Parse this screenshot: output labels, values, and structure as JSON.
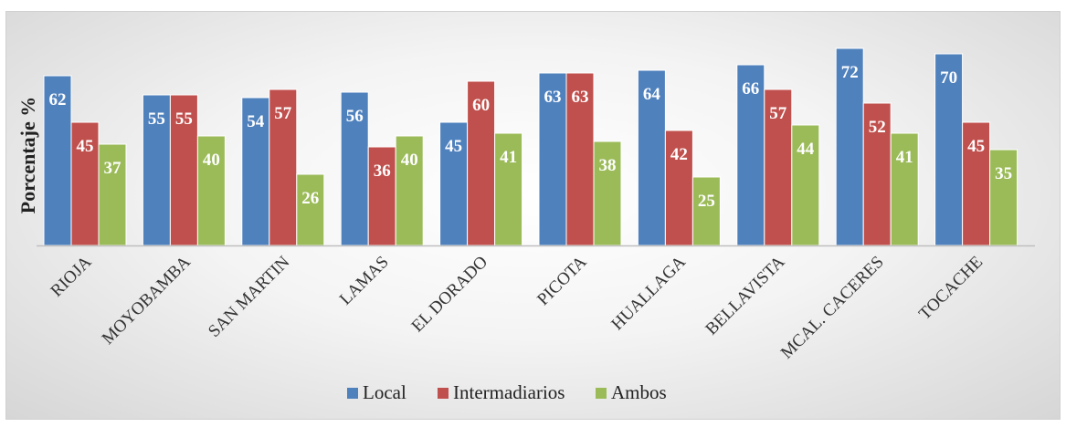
{
  "chart_data": {
    "type": "bar",
    "title": "",
    "ylabel": "Porcentaje  %",
    "xlabel": "",
    "ylim": [
      0,
      75
    ],
    "grid": false,
    "legend_position": "bottom",
    "categories": [
      "RIOJA",
      "MOYOBAMBA",
      "SAN MARTIN",
      "LAMAS",
      "EL DORADO",
      "PICOTA",
      "HUALLAGA",
      "BELLAVISTA",
      "MCAL. CACERES",
      "TOCACHE"
    ],
    "series": [
      {
        "name": "Local",
        "color": "#4f81bd",
        "values": [
          62,
          55,
          54,
          56,
          45,
          63,
          64,
          66,
          72,
          70
        ]
      },
      {
        "name": "Intermadiarios",
        "color": "#c0504d",
        "values": [
          45,
          55,
          57,
          36,
          60,
          63,
          42,
          57,
          52,
          45
        ]
      },
      {
        "name": "Ambos",
        "color": "#9bbb59",
        "values": [
          37,
          40,
          26,
          40,
          41,
          38,
          25,
          44,
          41,
          35
        ]
      }
    ]
  }
}
